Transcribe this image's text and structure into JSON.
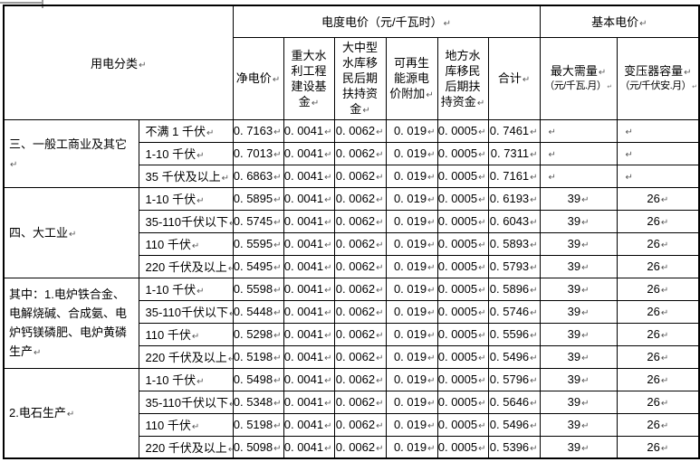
{
  "marks": {
    "paragraph": "↵"
  },
  "table": {
    "header": {
      "usage_category": "用电分类",
      "energy_price_group": "电度电价（元/千瓦时）",
      "basic_price_group": "基本电价",
      "columns": [
        "净电价",
        "重大水利工程建设基金",
        "大中型水库移民后期扶持资金",
        "可再生能源电价附加",
        "地方水库移民后期扶持资金",
        "合计"
      ],
      "max_demand": {
        "title": "最大需量",
        "unit": "（元/千瓦.月）"
      },
      "transformer_capacity": {
        "title": "变压器容量",
        "unit": "（元/千伏安.月）"
      }
    },
    "groups": [
      {
        "label": "三、一般工商业及其它",
        "rows": [
          {
            "voltage": "不满 1 千伏",
            "values": [
              "0. 7163",
              "0. 0041",
              "0. 0062",
              "0. 019",
              "0. 0005",
              "0. 7461",
              "",
              ""
            ]
          },
          {
            "voltage": "1-10 千伏",
            "values": [
              "0. 7013",
              "0. 0041",
              "0. 0062",
              "0. 019",
              "0. 0005",
              "0. 7311",
              "",
              ""
            ]
          },
          {
            "voltage": "35 千伏及以上",
            "values": [
              "0. 6863",
              "0. 0041",
              "0. 0062",
              "0. 019",
              "0. 0005",
              "0. 7161",
              "",
              ""
            ]
          }
        ]
      },
      {
        "label": "四、大工业",
        "rows": [
          {
            "voltage": "1-10 千伏",
            "values": [
              "0. 5895",
              "0. 0041",
              "0. 0062",
              "0. 019",
              "0. 0005",
              "0. 6193",
              "39",
              "26"
            ]
          },
          {
            "voltage": "35-110千伏以下",
            "values": [
              "0. 5745",
              "0. 0041",
              "0. 0062",
              "0. 019",
              "0. 0005",
              "0. 6043",
              "39",
              "26"
            ]
          },
          {
            "voltage": "110 千伏",
            "values": [
              "0. 5595",
              "0. 0041",
              "0. 0062",
              "0. 019",
              "0. 0005",
              "0. 5893",
              "39",
              "26"
            ]
          },
          {
            "voltage": "220 千伏及以上",
            "values": [
              "0. 5495",
              "0. 0041",
              "0. 0062",
              "0. 019",
              "0. 0005",
              "0. 5793",
              "39",
              "26"
            ]
          }
        ]
      },
      {
        "label": "其中：1.电炉铁合金、电解烧碱、合成氨、电炉钙镁磷肥、电炉黄磷生产",
        "rows": [
          {
            "voltage": "1-10 千伏",
            "values": [
              "0. 5598",
              "0. 0041",
              "0. 0062",
              "0. 019",
              "0. 0005",
              "0. 5896",
              "39",
              "26"
            ]
          },
          {
            "voltage": "35-110千伏以下",
            "values": [
              "0. 5448",
              "0. 0041",
              "0. 0062",
              "0. 019",
              "0. 0005",
              "0. 5746",
              "39",
              "26"
            ]
          },
          {
            "voltage": "110 千伏",
            "values": [
              "0. 5298",
              "0. 0041",
              "0. 0062",
              "0. 019",
              "0. 0005",
              "0. 5596",
              "39",
              "26"
            ]
          },
          {
            "voltage": "220 千伏及以上",
            "values": [
              "0. 5198",
              "0. 0041",
              "0. 0062",
              "0. 019",
              "0. 0005",
              "0. 5496",
              "39",
              "26"
            ]
          }
        ]
      },
      {
        "label": "2.电石生产",
        "rows": [
          {
            "voltage": "1-10 千伏",
            "values": [
              "0. 5498",
              "0. 0041",
              "0. 0062",
              "0. 019",
              "0. 0005",
              "0. 5796",
              "39",
              "26"
            ]
          },
          {
            "voltage": "35-110千伏以下",
            "values": [
              "0. 5348",
              "0. 0041",
              "0. 0062",
              "0. 019",
              "0. 0005",
              "0. 5646",
              "39",
              "26"
            ]
          },
          {
            "voltage": "110 千伏",
            "values": [
              "0. 5198",
              "0. 0041",
              "0. 0062",
              "0. 019",
              "0. 0005",
              "0. 5496",
              "39",
              "26"
            ]
          },
          {
            "voltage": "220 千伏及以上",
            "values": [
              "0. 5098",
              "0. 0041",
              "0. 0062",
              "0. 019",
              "0. 0005",
              "0. 5396",
              "39",
              "26"
            ]
          }
        ]
      }
    ]
  }
}
